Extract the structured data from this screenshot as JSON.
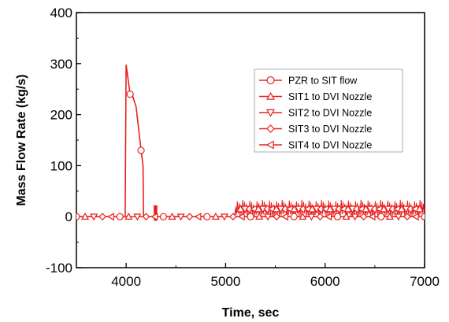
{
  "chart_data": {
    "type": "line",
    "xlabel": "Time, sec",
    "ylabel": "Mass Flow Rate (kg/s)",
    "xlim": [
      3500,
      7000
    ],
    "ylim": [
      -100,
      400
    ],
    "xticks": [
      4000,
      5000,
      6000,
      7000
    ],
    "yticks": [
      -100,
      0,
      100,
      200,
      300,
      400
    ],
    "legend_position": "right-middle",
    "color": "#e8201e",
    "series": [
      {
        "name": "PZR to SIT flow",
        "marker": "circle",
        "x": [
          3500,
          3990,
          4000,
          4040,
          4060,
          4100,
          4150,
          4170,
          4175,
          4200,
          4300,
          4500,
          5000,
          5500,
          6000,
          6500,
          7000
        ],
        "y": [
          0,
          0,
          298,
          240,
          240,
          215,
          130,
          100,
          0,
          0,
          0,
          0,
          0,
          0,
          0,
          0,
          0
        ]
      },
      {
        "name": "SIT1 to DVI Nozzle",
        "marker": "triangle-up",
        "x": [
          3500,
          4170,
          4300,
          5090,
          5100,
          5500,
          6000,
          6500,
          7000
        ],
        "y": [
          0,
          0,
          0,
          0,
          15,
          15,
          15,
          15,
          15
        ]
      },
      {
        "name": "SIT2 to DVI Nozzle",
        "marker": "triangle-down",
        "x": [
          3500,
          4170,
          4300,
          5090,
          5100,
          5500,
          6000,
          6500,
          7000
        ],
        "y": [
          0,
          0,
          0,
          0,
          15,
          15,
          15,
          15,
          15
        ]
      },
      {
        "name": "SIT3 to DVI Nozzle",
        "marker": "diamond",
        "x": [
          3500,
          4170,
          4300,
          5090,
          5100,
          5500,
          6000,
          6500,
          7000
        ],
        "y": [
          0,
          0,
          0,
          0,
          15,
          15,
          15,
          15,
          15
        ]
      },
      {
        "name": "SIT4 to DVI Nozzle",
        "marker": "triangle-left",
        "x": [
          3500,
          4170,
          4300,
          5090,
          5100,
          5500,
          6000,
          6500,
          7000
        ],
        "y": [
          0,
          0,
          0,
          0,
          15,
          15,
          15,
          15,
          15
        ]
      }
    ]
  }
}
